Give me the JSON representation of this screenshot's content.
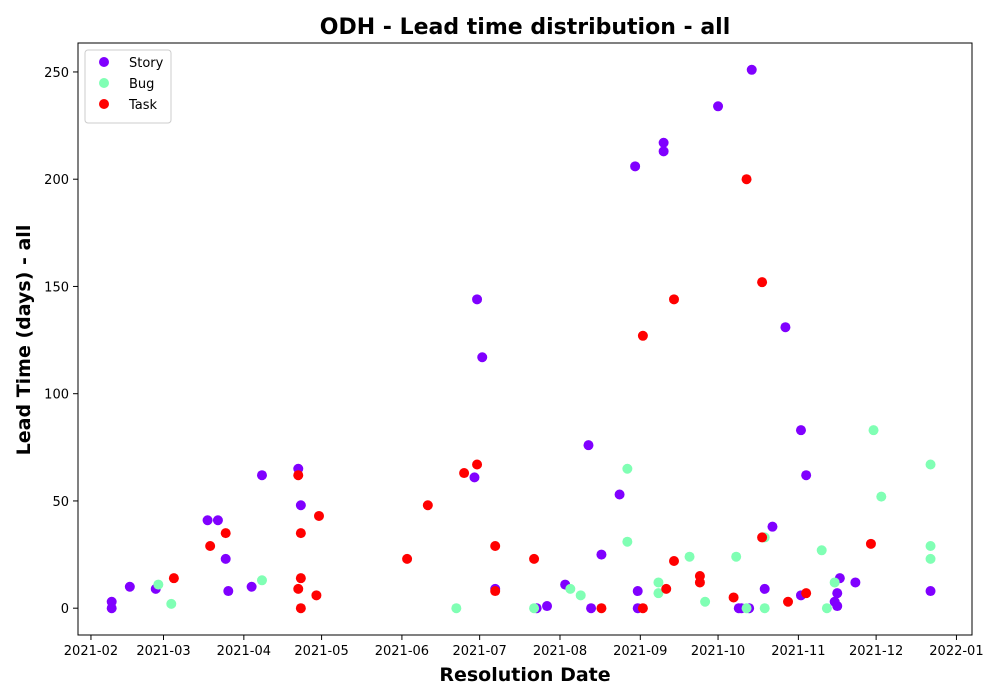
{
  "chart_data": {
    "type": "scatter",
    "title": "ODH - Lead time distribution - all",
    "xlabel": "Resolution Date",
    "ylabel": "Lead Time (days) - all",
    "x_range": [
      "2021-01-27",
      "2022-01-07"
    ],
    "ylim": [
      -12.5,
      263.5
    ],
    "x_ticks": [
      "2021-02",
      "2021-03",
      "2021-04",
      "2021-05",
      "2021-06",
      "2021-07",
      "2021-08",
      "2021-09",
      "2021-10",
      "2021-11",
      "2021-12",
      "2022-01"
    ],
    "y_ticks": [
      0,
      50,
      100,
      150,
      200,
      250
    ],
    "grid": false,
    "legend_position": "upper-left",
    "series": [
      {
        "name": "Story",
        "color": "#8000ff",
        "points": [
          {
            "x": "2021-02-09",
            "y": 3
          },
          {
            "x": "2021-02-09",
            "y": 0
          },
          {
            "x": "2021-02-16",
            "y": 10
          },
          {
            "x": "2021-02-26",
            "y": 9
          },
          {
            "x": "2021-03-18",
            "y": 41
          },
          {
            "x": "2021-03-22",
            "y": 41
          },
          {
            "x": "2021-03-25",
            "y": 23
          },
          {
            "x": "2021-03-26",
            "y": 8
          },
          {
            "x": "2021-04-04",
            "y": 10
          },
          {
            "x": "2021-04-08",
            "y": 62
          },
          {
            "x": "2021-04-22",
            "y": 65
          },
          {
            "x": "2021-04-23",
            "y": 48
          },
          {
            "x": "2021-06-29",
            "y": 61
          },
          {
            "x": "2021-06-30",
            "y": 144
          },
          {
            "x": "2021-07-02",
            "y": 117
          },
          {
            "x": "2021-07-07",
            "y": 9
          },
          {
            "x": "2021-07-23",
            "y": 0
          },
          {
            "x": "2021-07-27",
            "y": 1
          },
          {
            "x": "2021-08-03",
            "y": 11
          },
          {
            "x": "2021-08-12",
            "y": 76
          },
          {
            "x": "2021-08-13",
            "y": 0
          },
          {
            "x": "2021-08-17",
            "y": 25
          },
          {
            "x": "2021-08-24",
            "y": 53
          },
          {
            "x": "2021-08-30",
            "y": 206
          },
          {
            "x": "2021-08-31",
            "y": 8
          },
          {
            "x": "2021-08-31",
            "y": 0
          },
          {
            "x": "2021-09-10",
            "y": 217
          },
          {
            "x": "2021-09-10",
            "y": 213
          },
          {
            "x": "2021-10-01",
            "y": 234
          },
          {
            "x": "2021-10-09",
            "y": 0
          },
          {
            "x": "2021-10-10",
            "y": 0
          },
          {
            "x": "2021-10-13",
            "y": 0
          },
          {
            "x": "2021-10-14",
            "y": 251
          },
          {
            "x": "2021-10-19",
            "y": 9
          },
          {
            "x": "2021-10-22",
            "y": 38
          },
          {
            "x": "2021-10-27",
            "y": 131
          },
          {
            "x": "2021-11-02",
            "y": 6
          },
          {
            "x": "2021-11-02",
            "y": 83
          },
          {
            "x": "2021-11-04",
            "y": 62
          },
          {
            "x": "2021-11-15",
            "y": 3
          },
          {
            "x": "2021-11-16",
            "y": 7
          },
          {
            "x": "2021-11-16",
            "y": 1
          },
          {
            "x": "2021-11-17",
            "y": 14
          },
          {
            "x": "2021-11-23",
            "y": 12
          },
          {
            "x": "2021-12-22",
            "y": 8
          }
        ]
      },
      {
        "name": "Bug",
        "color": "#80ffb4",
        "points": [
          {
            "x": "2021-02-27",
            "y": 11
          },
          {
            "x": "2021-03-04",
            "y": 2
          },
          {
            "x": "2021-04-08",
            "y": 13
          },
          {
            "x": "2021-06-22",
            "y": 0
          },
          {
            "x": "2021-07-22",
            "y": 0
          },
          {
            "x": "2021-08-05",
            "y": 9
          },
          {
            "x": "2021-08-09",
            "y": 6
          },
          {
            "x": "2021-08-27",
            "y": 65
          },
          {
            "x": "2021-08-27",
            "y": 31
          },
          {
            "x": "2021-09-08",
            "y": 7
          },
          {
            "x": "2021-09-08",
            "y": 12
          },
          {
            "x": "2021-09-20",
            "y": 24
          },
          {
            "x": "2021-09-26",
            "y": 3
          },
          {
            "x": "2021-10-08",
            "y": 24
          },
          {
            "x": "2021-10-12",
            "y": 0
          },
          {
            "x": "2021-10-19",
            "y": 33
          },
          {
            "x": "2021-10-19",
            "y": 0
          },
          {
            "x": "2021-11-10",
            "y": 27
          },
          {
            "x": "2021-11-12",
            "y": 0
          },
          {
            "x": "2021-11-15",
            "y": 12
          },
          {
            "x": "2021-11-30",
            "y": 83
          },
          {
            "x": "2021-12-03",
            "y": 52
          },
          {
            "x": "2021-12-22",
            "y": 67
          },
          {
            "x": "2021-12-22",
            "y": 29
          },
          {
            "x": "2021-12-22",
            "y": 23
          }
        ]
      },
      {
        "name": "Task",
        "color": "#ff0000",
        "points": [
          {
            "x": "2021-03-05",
            "y": 14
          },
          {
            "x": "2021-03-19",
            "y": 29
          },
          {
            "x": "2021-03-25",
            "y": 35
          },
          {
            "x": "2021-04-22",
            "y": 62
          },
          {
            "x": "2021-04-22",
            "y": 9
          },
          {
            "x": "2021-04-23",
            "y": 35
          },
          {
            "x": "2021-04-23",
            "y": 14
          },
          {
            "x": "2021-04-23",
            "y": 0
          },
          {
            "x": "2021-04-29",
            "y": 6
          },
          {
            "x": "2021-04-30",
            "y": 43
          },
          {
            "x": "2021-06-03",
            "y": 23
          },
          {
            "x": "2021-06-11",
            "y": 48
          },
          {
            "x": "2021-06-25",
            "y": 63
          },
          {
            "x": "2021-06-30",
            "y": 67
          },
          {
            "x": "2021-07-07",
            "y": 29
          },
          {
            "x": "2021-07-07",
            "y": 8
          },
          {
            "x": "2021-07-22",
            "y": 23
          },
          {
            "x": "2021-08-17",
            "y": 0
          },
          {
            "x": "2021-09-02",
            "y": 127
          },
          {
            "x": "2021-09-02",
            "y": 0
          },
          {
            "x": "2021-09-11",
            "y": 9
          },
          {
            "x": "2021-09-14",
            "y": 144
          },
          {
            "x": "2021-09-14",
            "y": 22
          },
          {
            "x": "2021-09-24",
            "y": 15
          },
          {
            "x": "2021-09-24",
            "y": 12
          },
          {
            "x": "2021-10-07",
            "y": 5
          },
          {
            "x": "2021-10-12",
            "y": 200
          },
          {
            "x": "2021-10-18",
            "y": 152
          },
          {
            "x": "2021-10-18",
            "y": 33
          },
          {
            "x": "2021-10-28",
            "y": 3
          },
          {
            "x": "2021-11-04",
            "y": 7
          },
          {
            "x": "2021-11-29",
            "y": 30
          }
        ]
      }
    ]
  }
}
